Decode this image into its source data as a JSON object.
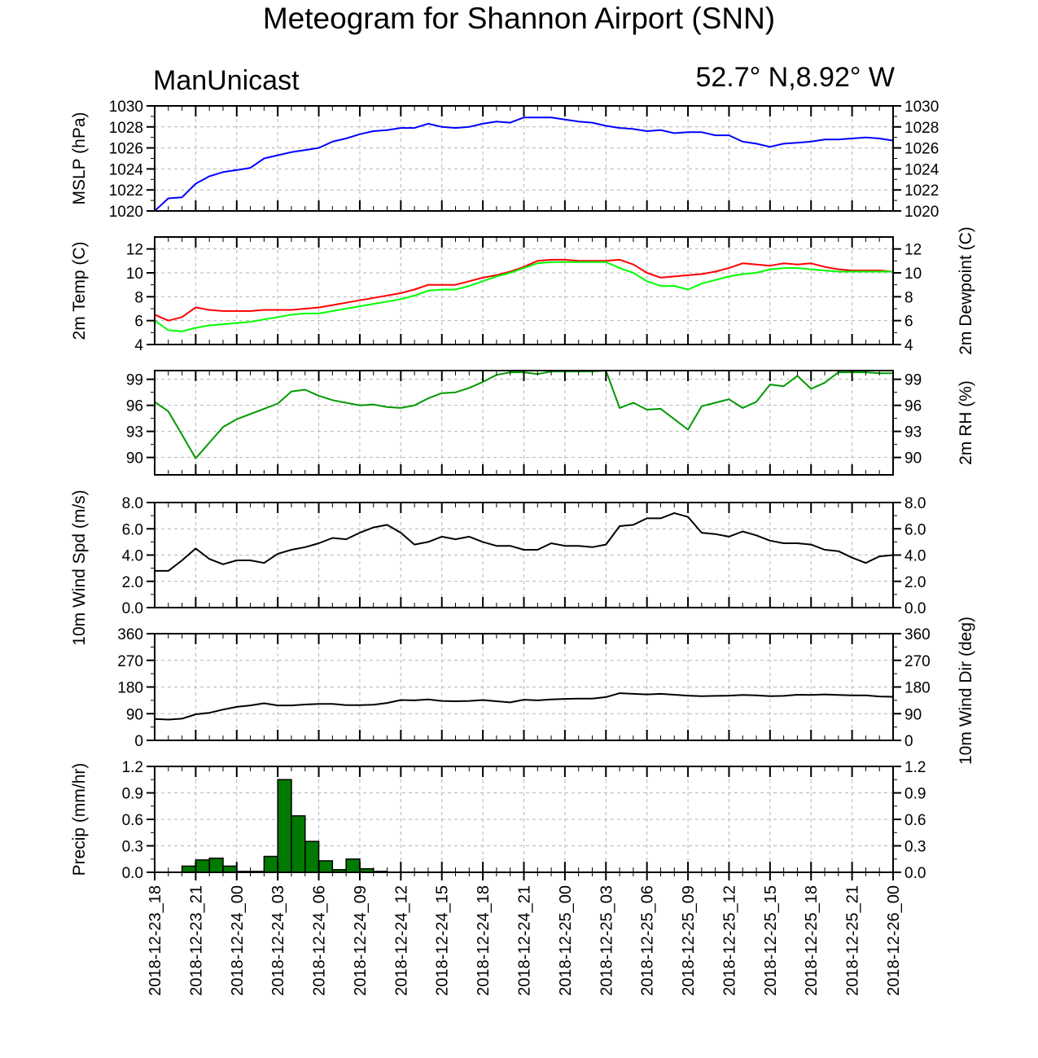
{
  "title": "Meteogram for Shannon Airport (SNN)",
  "model": "ManUnicast",
  "location": "52.7° N,8.92° W",
  "chart_data": {
    "type": "line",
    "x": [
      "2018-12-23_18",
      "2018-12-23_19",
      "2018-12-23_20",
      "2018-12-23_21",
      "2018-12-23_22",
      "2018-12-23_23",
      "2018-12-24_00",
      "2018-12-24_01",
      "2018-12-24_02",
      "2018-12-24_03",
      "2018-12-24_04",
      "2018-12-24_05",
      "2018-12-24_06",
      "2018-12-24_07",
      "2018-12-24_08",
      "2018-12-24_09",
      "2018-12-24_10",
      "2018-12-24_11",
      "2018-12-24_12",
      "2018-12-24_13",
      "2018-12-24_14",
      "2018-12-24_15",
      "2018-12-24_16",
      "2018-12-24_17",
      "2018-12-24_18",
      "2018-12-24_19",
      "2018-12-24_20",
      "2018-12-24_21",
      "2018-12-24_22",
      "2018-12-24_23",
      "2018-12-25_00",
      "2018-12-25_01",
      "2018-12-25_02",
      "2018-12-25_03",
      "2018-12-25_04",
      "2018-12-25_05",
      "2018-12-25_06",
      "2018-12-25_07",
      "2018-12-25_08",
      "2018-12-25_09",
      "2018-12-25_10",
      "2018-12-25_11",
      "2018-12-25_12",
      "2018-12-25_13",
      "2018-12-25_14",
      "2018-12-25_15",
      "2018-12-25_16",
      "2018-12-25_17",
      "2018-12-25_18",
      "2018-12-25_19",
      "2018-12-25_20",
      "2018-12-25_21",
      "2018-12-25_22",
      "2018-12-25_23",
      "2018-12-26_00"
    ],
    "x_tick_labels": [
      "2018-12-23_18",
      "2018-12-23_21",
      "2018-12-24_00",
      "2018-12-24_03",
      "2018-12-24_06",
      "2018-12-24_09",
      "2018-12-24_12",
      "2018-12-24_15",
      "2018-12-24_18",
      "2018-12-24_21",
      "2018-12-25_00",
      "2018-12-25_03",
      "2018-12-25_06",
      "2018-12-25_09",
      "2018-12-25_12",
      "2018-12-25_15",
      "2018-12-25_18",
      "2018-12-25_21",
      "2018-12-26_00"
    ],
    "grid": true,
    "panels": [
      {
        "id": "mslp",
        "ylabel_left": "MSLP (hPa)",
        "ylabel_right": "",
        "ylim": [
          1020,
          1030
        ],
        "yticks": [
          "1020",
          "1022",
          "1024",
          "1026",
          "1028",
          "1030"
        ],
        "right_ticks": true,
        "series": [
          {
            "color": "#0000ff",
            "values": [
              1020.0,
              1021.2,
              1021.3,
              1022.6,
              1023.3,
              1023.7,
              1023.9,
              1024.1,
              1025.0,
              1025.3,
              1025.6,
              1025.8,
              1026.0,
              1026.6,
              1026.9,
              1027.3,
              1027.6,
              1027.7,
              1027.9,
              1027.9,
              1028.3,
              1028.0,
              1027.9,
              1028.0,
              1028.3,
              1028.5,
              1028.4,
              1028.9,
              1028.9,
              1028.9,
              1028.7,
              1028.5,
              1028.4,
              1028.1,
              1027.9,
              1027.8,
              1027.6,
              1027.7,
              1027.4,
              1027.5,
              1027.5,
              1027.2,
              1027.2,
              1026.6,
              1026.4,
              1026.1,
              1026.4,
              1026.5,
              1026.6,
              1026.8,
              1026.8,
              1026.9,
              1027.0,
              1026.9,
              1026.7
            ]
          }
        ]
      },
      {
        "id": "temp",
        "ylabel_left": "2m Temp (C)",
        "ylabel_right": "2m Dewpoint (C)",
        "ylim": [
          4,
          13
        ],
        "yticks": [
          "4",
          "6",
          "8",
          "10",
          "12"
        ],
        "right_ticks": true,
        "series": [
          {
            "color": "#ff0000",
            "values": [
              6.5,
              6.0,
              6.3,
              7.1,
              6.9,
              6.8,
              6.8,
              6.8,
              6.9,
              6.9,
              6.9,
              7.0,
              7.1,
              7.3,
              7.5,
              7.7,
              7.9,
              8.1,
              8.3,
              8.6,
              9.0,
              9.0,
              9.0,
              9.3,
              9.6,
              9.8,
              10.1,
              10.5,
              11.0,
              11.1,
              11.1,
              11.0,
              11.0,
              11.0,
              11.1,
              10.7,
              10.0,
              9.6,
              9.7,
              9.8,
              9.9,
              10.1,
              10.4,
              10.8,
              10.7,
              10.6,
              10.8,
              10.7,
              10.8,
              10.5,
              10.3,
              10.2,
              10.2,
              10.2,
              10.1
            ]
          },
          {
            "color": "#00ff00",
            "values": [
              6.0,
              5.2,
              5.1,
              5.4,
              5.6,
              5.7,
              5.8,
              5.9,
              6.1,
              6.3,
              6.5,
              6.6,
              6.6,
              6.8,
              7.0,
              7.2,
              7.4,
              7.6,
              7.8,
              8.1,
              8.5,
              8.6,
              8.6,
              8.9,
              9.3,
              9.7,
              10.0,
              10.4,
              10.8,
              10.9,
              10.9,
              10.9,
              10.9,
              10.9,
              10.4,
              10.0,
              9.3,
              8.9,
              8.9,
              8.6,
              9.1,
              9.4,
              9.7,
              9.9,
              10.0,
              10.3,
              10.4,
              10.4,
              10.3,
              10.2,
              10.1,
              10.1,
              10.1,
              10.1,
              10.1
            ]
          }
        ]
      },
      {
        "id": "rh",
        "ylabel_left": "",
        "ylabel_right": "2m RH (%)",
        "ylim": [
          88,
          100
        ],
        "yticks": [
          "90",
          "93",
          "96",
          "99"
        ],
        "right_ticks": true,
        "series": [
          {
            "color": "#009900",
            "values": [
              96.4,
              95.3,
              92.6,
              89.9,
              91.7,
              93.5,
              94.4,
              95.0,
              95.6,
              96.2,
              97.6,
              97.8,
              97.1,
              96.6,
              96.3,
              96.0,
              96.1,
              95.8,
              95.7,
              96.0,
              96.8,
              97.4,
              97.5,
              98.0,
              98.7,
              99.5,
              99.8,
              99.8,
              99.6,
              99.9,
              99.9,
              99.9,
              99.9,
              100.0,
              95.7,
              96.3,
              95.5,
              95.6,
              94.4,
              93.2,
              95.9,
              96.3,
              96.7,
              95.7,
              96.4,
              98.4,
              98.2,
              99.4,
              97.9,
              98.6,
              99.8,
              99.8,
              99.8,
              99.7,
              99.7
            ]
          }
        ]
      },
      {
        "id": "wspd",
        "ylabel_left": "10m Wind Spd (m/s)",
        "ylabel_right": "",
        "ylim": [
          0,
          8
        ],
        "yticks": [
          "0.0",
          "2.0",
          "4.0",
          "6.0",
          "8.0"
        ],
        "right_ticks": true,
        "series": [
          {
            "color": "#000000",
            "values": [
              2.8,
              2.8,
              3.6,
              4.5,
              3.7,
              3.3,
              3.6,
              3.6,
              3.4,
              4.1,
              4.4,
              4.6,
              4.9,
              5.3,
              5.2,
              5.7,
              6.1,
              6.3,
              5.7,
              4.8,
              5.0,
              5.4,
              5.2,
              5.4,
              5.0,
              4.7,
              4.7,
              4.4,
              4.4,
              4.9,
              4.7,
              4.7,
              4.6,
              4.8,
              6.2,
              6.3,
              6.8,
              6.8,
              7.2,
              6.9,
              5.7,
              5.6,
              5.4,
              5.8,
              5.5,
              5.1,
              4.9,
              4.9,
              4.8,
              4.4,
              4.3,
              3.8,
              3.4,
              3.9,
              4.0
            ]
          }
        ]
      },
      {
        "id": "wdir",
        "ylabel_left": "",
        "ylabel_right": "10m Wind Dir (deg)",
        "ylim": [
          0,
          360
        ],
        "yticks": [
          "0",
          "90",
          "180",
          "270",
          "360"
        ],
        "right_ticks": true,
        "series": [
          {
            "color": "#000000",
            "values": [
              72,
              70,
              73,
              88,
              93,
              104,
              113,
              118,
              125,
              118,
              118,
              121,
              123,
              123,
              119,
              119,
              120,
              126,
              136,
              135,
              138,
              133,
              132,
              133,
              136,
              132,
              128,
              137,
              135,
              138,
              140,
              141,
              141,
              146,
              159,
              157,
              155,
              157,
              154,
              151,
              149,
              150,
              151,
              153,
              152,
              149,
              150,
              154,
              153,
              155,
              153,
              152,
              152,
              148,
              147
            ]
          }
        ]
      },
      {
        "id": "precip",
        "type": "bar",
        "ylabel_left": "Precip (mm/hr)",
        "ylabel_right": "",
        "ylim": [
          0,
          1.2
        ],
        "yticks": [
          "0.0",
          "0.3",
          "0.6",
          "0.9",
          "1.2"
        ],
        "right_ticks": true,
        "bar_color": "#007a00",
        "values": [
          0,
          0,
          0.07,
          0.14,
          0.16,
          0.07,
          0.01,
          0.01,
          0.18,
          1.05,
          0.64,
          0.35,
          0.13,
          0.03,
          0.15,
          0.04,
          0.01,
          0,
          0,
          0,
          0,
          0,
          0,
          0,
          0,
          0,
          0,
          0,
          0,
          0,
          0,
          0,
          0,
          0,
          0,
          0,
          0,
          0,
          0,
          0,
          0,
          0,
          0,
          0,
          0,
          0,
          0,
          0,
          0,
          0,
          0,
          0,
          0,
          0
        ]
      }
    ]
  }
}
